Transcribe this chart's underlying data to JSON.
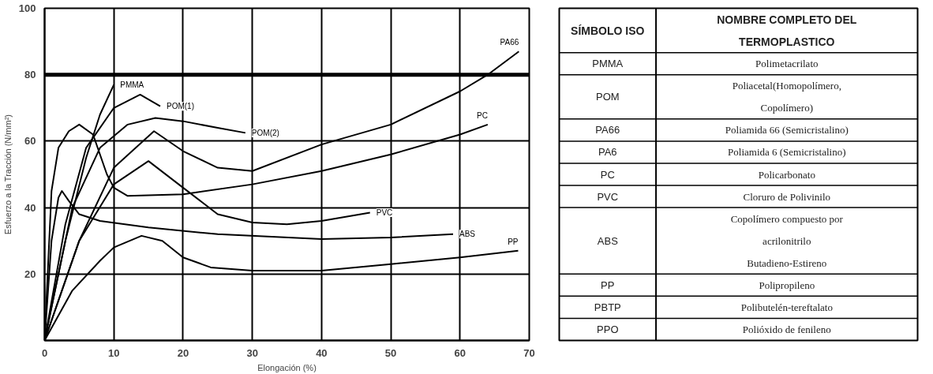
{
  "chart_data": [
    {
      "type": "line",
      "xlabel": "Elongación (%)",
      "ylabel": "Esfuerzo a la Tracción (N/mm²)",
      "xlim": [
        0,
        70
      ],
      "ylim": [
        0,
        100
      ],
      "xticks": [
        0,
        10,
        20,
        30,
        40,
        50,
        60,
        70
      ],
      "yticks": [
        20,
        40,
        60,
        80,
        100
      ],
      "grid": true,
      "ref_lines": [
        {
          "axis": "y",
          "value": 80,
          "label": null,
          "color": "#000000"
        }
      ],
      "series": [
        {
          "name": "PMMA",
          "color": "#000000",
          "x": [
            0,
            3,
            6,
            8,
            10
          ],
          "values": [
            0,
            30,
            55,
            68,
            77
          ]
        },
        {
          "name": "POM(1)",
          "color": "#000000",
          "x": [
            0,
            3,
            6,
            10,
            13.8,
            16.7
          ],
          "values": [
            0,
            35,
            58,
            70,
            74,
            70.5
          ]
        },
        {
          "name": "POM(2)",
          "color": "#000000",
          "x": [
            0,
            4,
            8,
            12,
            16,
            20,
            25,
            29
          ],
          "values": [
            0,
            40,
            58,
            65,
            67,
            66,
            64,
            62.5
          ]
        },
        {
          "name": "PA66",
          "color": "#000000",
          "x": [
            0,
            5,
            10,
            15.8,
            20,
            25,
            30,
            40,
            50,
            60,
            64,
            68.5
          ],
          "values": [
            0,
            30,
            52,
            63,
            57,
            52,
            51,
            59,
            65,
            75,
            80,
            87
          ]
        },
        {
          "name": "PC",
          "color": "#000000",
          "x": [
            0,
            1,
            2,
            3.5,
            5,
            7,
            9,
            10,
            12,
            20,
            30,
            40,
            50,
            60,
            64
          ],
          "values": [
            0,
            45,
            58,
            63,
            65,
            62,
            50,
            46,
            43.5,
            44,
            47,
            51,
            56,
            62,
            65
          ]
        },
        {
          "name": "PVC",
          "color": "#000000",
          "x": [
            0,
            5,
            10,
            15,
            20,
            25,
            30,
            35,
            40,
            47
          ],
          "values": [
            0,
            30,
            47,
            54,
            46,
            38,
            35.5,
            35,
            36,
            38.5
          ]
        },
        {
          "name": "ABS",
          "color": "#000000",
          "x": [
            0,
            1,
            2,
            2.5,
            3.5,
            5,
            8,
            15,
            25,
            40,
            50,
            59
          ],
          "values": [
            0,
            30,
            43,
            45,
            42,
            38,
            36,
            34,
            32,
            30.5,
            31,
            32
          ]
        },
        {
          "name": "PP",
          "color": "#000000",
          "x": [
            0,
            4,
            8,
            10,
            14,
            17,
            20,
            24,
            30,
            40,
            50,
            60,
            68.4
          ],
          "values": [
            0,
            15,
            24,
            28,
            31.5,
            30,
            25,
            22,
            21,
            21,
            23,
            25,
            27
          ]
        }
      ]
    },
    {
      "type": "other",
      "annotations": [
        "SÍMBOLO ISO",
        "NOMBRE COMPLETO DEL TERMOPLASTICO",
        "PMMA",
        "Polimetacrilato",
        "POM",
        "Poliacetal(Homopolímero, Copolímero)",
        "PA66",
        "Poliamida 66 (Semicristalino)",
        "PA6",
        "Poliamida 6 (Semicristalino)",
        "PC",
        "Policarbonato",
        "PVC",
        "Cloruro de Polivinilo",
        "ABS",
        "Copolímero compuesto por acrilonitrilo Butadieno-Estireno",
        "PP",
        "Polipropileno",
        "PBTP",
        "Polibutelén-tereftalato",
        "PPO",
        "Polióxido de fenileno"
      ]
    }
  ]
}
